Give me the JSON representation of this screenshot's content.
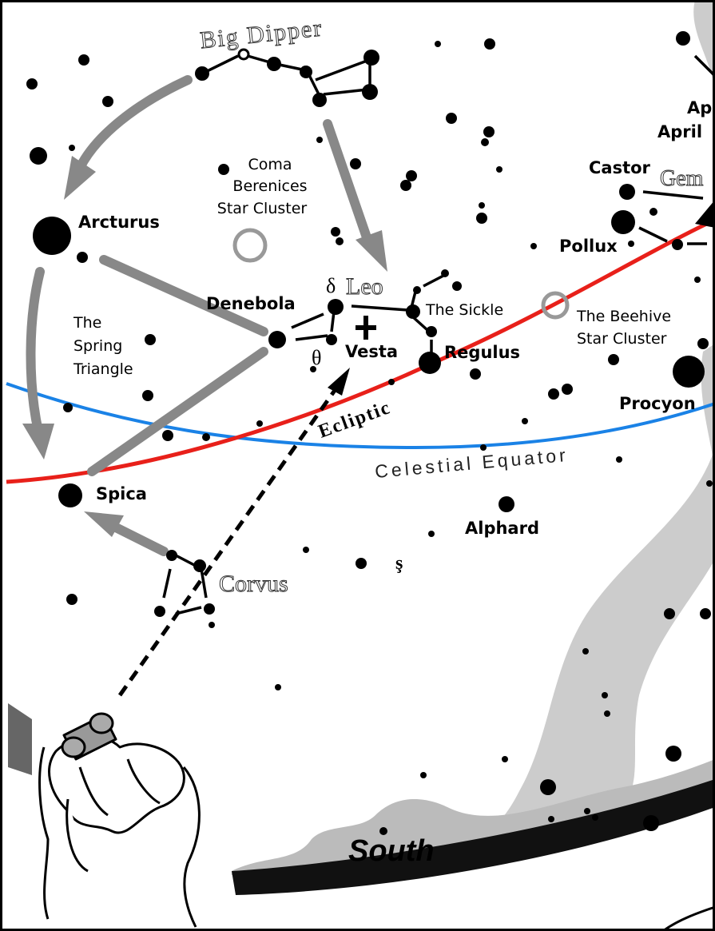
{
  "labels": {
    "big_dipper": "Big Dipper",
    "ap": "Ap",
    "april": "April",
    "coma": [
      "Coma",
      "Berenices",
      "Star Cluster"
    ],
    "castor": "Castor",
    "gem": "Gem",
    "arcturus": "Arcturus",
    "pollux": "Pollux",
    "delta": "δ",
    "leo": "Leo",
    "sickle": "The Sickle",
    "beehive": [
      "The Beehive",
      "Star Cluster"
    ],
    "denebola": "Denebola",
    "spring_triangle": [
      "The",
      "Spring",
      "Triangle"
    ],
    "theta": "θ",
    "vesta": "Vesta",
    "regulus": "Regulus",
    "ecliptic": "Ecliptic",
    "procyon": "Procyon",
    "celestial_equator": "Celestial Equator",
    "spica": "Spica",
    "alphard": "Alphard",
    "corvus": "Corvus",
    "symbol": "ş",
    "south": "South"
  }
}
